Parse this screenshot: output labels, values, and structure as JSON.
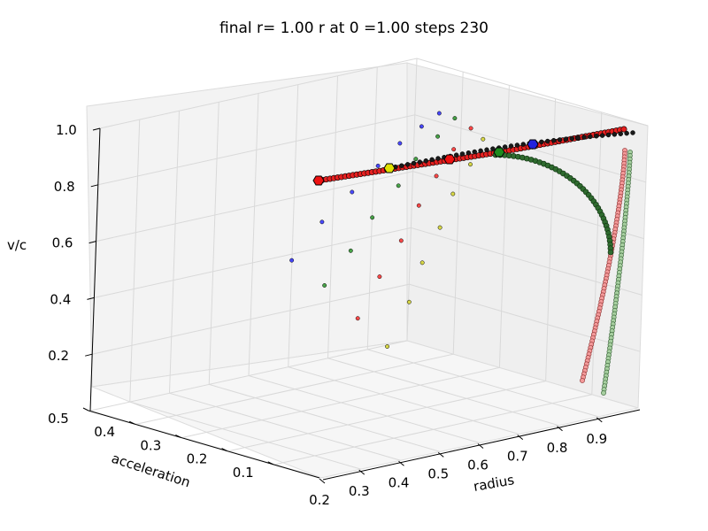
{
  "chart_data": {
    "type": "scatter",
    "projection": "3d",
    "title": "final r= 1.00 r at 0 =1.00 steps 230",
    "xlabel": "radius",
    "ylabel": "acceleration",
    "zlabel": "v/c",
    "xlim": [
      0.2,
      1.0
    ],
    "ylim": [
      0.0,
      0.5
    ],
    "zlim": [
      0.0,
      1.0
    ],
    "xticks": [
      "0.2",
      "0.3",
      "0.4",
      "0.5",
      "0.6",
      "0.7",
      "0.8",
      "0.9"
    ],
    "yticks": [
      "0.1",
      "0.2",
      "0.3",
      "0.4",
      "0.5"
    ],
    "zticks": [
      "0.2",
      "0.4",
      "0.6",
      "0.8",
      "1.0"
    ],
    "grid": true,
    "marker_edge": "#000000",
    "series": [
      {
        "color": "#0000ff",
        "x": [
          0.86,
          0.84,
          0.81,
          0.78,
          0.74,
          0.69,
          0.64
        ],
        "y": [
          0.33,
          0.35,
          0.37,
          0.39,
          0.41,
          0.43,
          0.45
        ],
        "z": [
          0.93,
          0.88,
          0.82,
          0.74,
          0.65,
          0.55,
          0.42
        ]
      },
      {
        "color": "#008000",
        "x": [
          0.9,
          0.87,
          0.84,
          0.81,
          0.77,
          0.73,
          0.69
        ],
        "y": [
          0.33,
          0.34,
          0.36,
          0.37,
          0.39,
          0.4,
          0.42
        ],
        "z": [
          0.9,
          0.84,
          0.76,
          0.67,
          0.56,
          0.45,
          0.33
        ]
      },
      {
        "color": "#ff0000",
        "x": [
          0.93,
          0.9,
          0.87,
          0.84,
          0.81,
          0.77,
          0.73
        ],
        "y": [
          0.32,
          0.33,
          0.34,
          0.35,
          0.36,
          0.37,
          0.38
        ],
        "z": [
          0.86,
          0.79,
          0.7,
          0.6,
          0.48,
          0.36,
          0.22
        ]
      },
      {
        "color": "#cccc00",
        "x": [
          0.95,
          0.92,
          0.89,
          0.86,
          0.83,
          0.8,
          0.76
        ],
        "y": [
          0.31,
          0.31,
          0.32,
          0.32,
          0.33,
          0.33,
          0.34
        ],
        "z": [
          0.82,
          0.74,
          0.64,
          0.53,
          0.41,
          0.28,
          0.13
        ]
      }
    ],
    "trajectories": [
      {
        "color": "#ff0000",
        "start": [
          0.24,
          0.0,
          0.8
        ],
        "end": [
          0.99,
          0.0,
          0.93
        ]
      },
      {
        "color": "#ff0000",
        "start": [
          0.99,
          0.0,
          0.91
        ],
        "end": [
          0.99,
          0.0,
          0.05
        ]
      },
      {
        "color": "#2e8b57",
        "start": [
          1.0,
          0.0,
          0.89
        ],
        "end": [
          1.0,
          0.0,
          0.0
        ]
      }
    ]
  }
}
